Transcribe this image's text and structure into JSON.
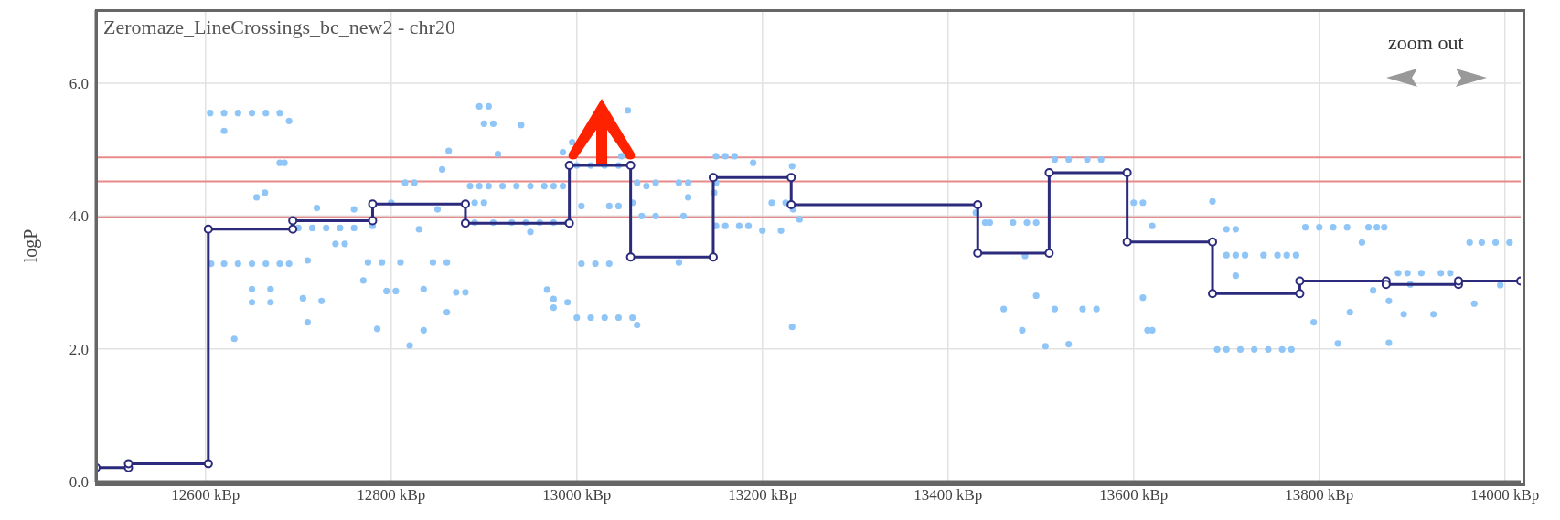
{
  "chart_data": {
    "type": "scatter",
    "title": "Zeromaze_LineCrossings_bc_new2 - chr20",
    "ylabel": "logP",
    "annotations": [
      "zoom out"
    ],
    "xlim": [
      12482,
      14017
    ],
    "ylim": [
      0,
      7.1
    ],
    "xticks": [
      {
        "value": 12600,
        "label": "12600 kBp"
      },
      {
        "value": 12800,
        "label": "12800 kBp"
      },
      {
        "value": 13000,
        "label": "13000 kBp"
      },
      {
        "value": 13200,
        "label": "13200 kBp"
      },
      {
        "value": 13400,
        "label": "13400 kBp"
      },
      {
        "value": 13600,
        "label": "13600 kBp"
      },
      {
        "value": 13800,
        "label": "13800 kBp"
      },
      {
        "value": 14000,
        "label": "14000 kBp"
      }
    ],
    "yticks": [
      {
        "value": 0,
        "label": "0.0"
      },
      {
        "value": 2,
        "label": "2.0"
      },
      {
        "value": 4,
        "label": "4.0"
      },
      {
        "value": 6,
        "label": "6.0"
      }
    ],
    "grid": true,
    "marker": "circle",
    "ref_lines": [
      {
        "axis": "y",
        "value": 4.88,
        "color": "#e88a8a"
      },
      {
        "axis": "y",
        "value": 4.52,
        "color": "#e88a8a"
      },
      {
        "axis": "y",
        "value": 3.98,
        "color": "#e88a8a"
      }
    ],
    "series": [
      {
        "color": "#90c6f7",
        "x": [
          12605,
          12620,
          12635,
          12650,
          12665,
          12680,
          12690,
          12620,
          12680,
          12685,
          12664,
          12655,
          12606,
          12620,
          12635,
          12650,
          12665,
          12680,
          12690,
          12650,
          12670,
          12650,
          12670,
          12631,
          12700,
          12715,
          12730,
          12745,
          12760,
          12740,
          12750,
          12720,
          12710,
          12705,
          12710,
          12725,
          12760,
          12775,
          12790,
          12780,
          12770,
          12785,
          12795,
          12805,
          12810,
          12800,
          12815,
          12825,
          12830,
          12820,
          12835,
          12835,
          12845,
          12860,
          12850,
          12855,
          12862,
          12860,
          12870,
          12880,
          12895,
          12905,
          12900,
          12910,
          12915,
          12885,
          12895,
          12905,
          12920,
          12935,
          12950,
          12965,
          12975,
          12985,
          12890,
          12900,
          12890,
          12910,
          12930,
          12945,
          12960,
          12975,
          12990,
          12940,
          12950,
          12985,
          12995,
          12968,
          12975,
          12975,
          12990,
          13000,
          13015,
          13030,
          13045,
          13060,
          13065,
          13005,
          13020,
          13035,
          13000,
          13015,
          13030,
          13045,
          13005,
          13035,
          13045,
          13055,
          13048,
          13065,
          13075,
          13085,
          13060,
          13070,
          13085,
          13110,
          13120,
          13120,
          13115,
          13110,
          13150,
          13160,
          13170,
          13150,
          13148,
          13150,
          13160,
          13175,
          13185,
          13190,
          13210,
          13225,
          13200,
          13220,
          13232,
          13233,
          13240,
          13232,
          13430,
          13440,
          13445,
          13460,
          13470,
          13485,
          13495,
          13480,
          13483,
          13495,
          13505,
          13515,
          13530,
          13545,
          13560,
          13515,
          13530,
          13550,
          13565,
          13600,
          13610,
          13620,
          13610,
          13615,
          13620,
          13685,
          13700,
          13710,
          13700,
          13710,
          13720,
          13740,
          13755,
          13765,
          13775,
          13710,
          13690,
          13700,
          13715,
          13730,
          13745,
          13760,
          13770,
          13785,
          13800,
          13815,
          13830,
          13853,
          13862,
          13870,
          13846,
          13962,
          13975,
          13990,
          14005,
          13794,
          13820,
          13833,
          13858,
          13875,
          13875,
          13885,
          13895,
          13910,
          13891,
          13898,
          13923,
          13931,
          13941,
          13967,
          13995
        ],
        "values": [
          5.55,
          5.55,
          5.55,
          5.55,
          5.55,
          5.55,
          5.43,
          5.28,
          4.8,
          4.8,
          4.35,
          4.28,
          3.28,
          3.28,
          3.28,
          3.28,
          3.28,
          3.28,
          3.28,
          2.9,
          2.9,
          2.7,
          2.7,
          2.15,
          3.82,
          3.82,
          3.82,
          3.82,
          3.82,
          3.58,
          3.58,
          4.12,
          3.33,
          2.76,
          2.4,
          2.72,
          4.1,
          3.3,
          3.3,
          3.85,
          3.03,
          2.3,
          2.87,
          2.87,
          3.3,
          4.2,
          4.5,
          4.5,
          3.8,
          2.05,
          2.28,
          2.9,
          3.3,
          3.3,
          4.1,
          4.7,
          4.98,
          2.55,
          2.85,
          2.85,
          5.65,
          5.65,
          5.39,
          5.39,
          4.93,
          4.45,
          4.45,
          4.45,
          4.45,
          4.45,
          4.45,
          4.45,
          4.45,
          4.45,
          4.2,
          4.2,
          3.9,
          3.9,
          3.9,
          3.9,
          3.9,
          3.9,
          3.9,
          5.37,
          3.76,
          4.96,
          5.11,
          2.89,
          2.75,
          2.62,
          2.7,
          2.47,
          2.47,
          2.47,
          2.47,
          2.47,
          2.36,
          3.28,
          3.28,
          3.28,
          4.76,
          4.76,
          4.76,
          4.76,
          4.15,
          4.15,
          4.15,
          5.59,
          4.9,
          4.5,
          4.45,
          4.5,
          4.2,
          4.0,
          4.0,
          4.5,
          4.5,
          4.28,
          4.0,
          3.3,
          4.9,
          4.9,
          4.9,
          4.5,
          4.35,
          3.85,
          3.85,
          3.85,
          3.85,
          4.8,
          4.2,
          4.2,
          3.78,
          3.78,
          4.75,
          4.1,
          3.95,
          2.33,
          4.05,
          3.9,
          3.9,
          2.6,
          3.9,
          3.9,
          3.9,
          2.28,
          3.4,
          2.8,
          2.04,
          2.6,
          2.07,
          2.6,
          2.6,
          4.85,
          4.85,
          4.85,
          4.85,
          4.2,
          4.2,
          3.85,
          2.77,
          2.28,
          2.28,
          4.22,
          3.8,
          3.8,
          3.41,
          3.41,
          3.41,
          3.41,
          3.41,
          3.41,
          3.41,
          3.1,
          1.99,
          1.99,
          1.99,
          1.99,
          1.99,
          1.99,
          1.99,
          3.83,
          3.83,
          3.83,
          3.83,
          3.83,
          3.83,
          3.83,
          3.6,
          3.6,
          3.6,
          3.6,
          3.6,
          2.4,
          2.08,
          2.55,
          2.88,
          2.72,
          2.09,
          3.14,
          3.14,
          3.14,
          2.52,
          2.97,
          2.52,
          3.14,
          3.14,
          2.68,
          2.96
        ]
      },
      {
        "type": "line",
        "color": "#2b2a7c",
        "x": [
          12482,
          12517,
          12517,
          12603,
          12603,
          12694,
          12694,
          12780,
          12780,
          12880,
          12880,
          12992,
          12992,
          13058,
          13058,
          13147,
          13147,
          13231,
          13231,
          13432,
          13432,
          13509,
          13509,
          13593,
          13593,
          13685,
          13685,
          13779,
          13779,
          13872,
          13872,
          13950,
          13950,
          14017
        ],
        "values": [
          0.21,
          0.21,
          0.27,
          0.27,
          3.8,
          3.8,
          3.93,
          3.93,
          4.18,
          4.18,
          3.89,
          3.89,
          4.76,
          4.76,
          3.38,
          3.38,
          4.58,
          4.58,
          4.17,
          4.17,
          3.44,
          3.44,
          4.65,
          4.65,
          3.61,
          3.61,
          2.83,
          2.83,
          3.02,
          3.02,
          2.97,
          2.97,
          3.02,
          3.02
        ]
      }
    ]
  }
}
